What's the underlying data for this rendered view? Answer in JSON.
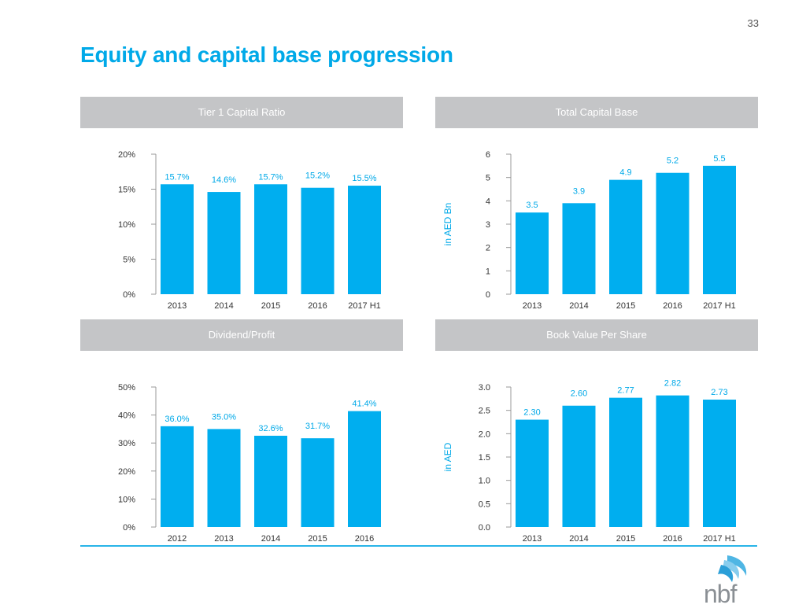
{
  "page_number": "33",
  "title": "Equity and capital base progression",
  "panels": {
    "tier1": {
      "header": "Tier 1 Capital Ratio"
    },
    "capital_base": {
      "header": "Total Capital Base"
    },
    "dividend": {
      "header": "Dividend/Profit"
    },
    "bvps": {
      "header": "Book Value Per Share"
    }
  },
  "logo_text": "nbf",
  "colors": {
    "bar": "#00aeef",
    "accent": "#00a9e8",
    "header_bg": "#c4c5c7",
    "axis": "#9a9a9a"
  },
  "chart_data": [
    {
      "id": "tier1",
      "type": "bar",
      "title": "Tier 1 Capital Ratio",
      "categories": [
        "2013",
        "2014",
        "2015",
        "2016",
        "2017 H1"
      ],
      "values": [
        15.7,
        14.6,
        15.7,
        15.2,
        15.5
      ],
      "data_labels": [
        "15.7%",
        "14.6%",
        "15.7%",
        "15.2%",
        "15.5%"
      ],
      "ylim": [
        0,
        20
      ],
      "yticks": [
        0,
        5,
        10,
        15,
        20
      ],
      "ytick_labels": [
        "0%",
        "5%",
        "10%",
        "15%",
        "20%"
      ],
      "ylabel": ""
    },
    {
      "id": "capital_base",
      "type": "bar",
      "title": "Total Capital Base",
      "categories": [
        "2013",
        "2014",
        "2015",
        "2016",
        "2017 H1"
      ],
      "values": [
        3.5,
        3.9,
        4.9,
        5.2,
        5.5
      ],
      "data_labels": [
        "3.5",
        "3.9",
        "4.9",
        "5.2",
        "5.5"
      ],
      "ylim": [
        0,
        6
      ],
      "yticks": [
        0,
        1,
        2,
        3,
        4,
        5,
        6
      ],
      "ytick_labels": [
        "0",
        "1",
        "2",
        "3",
        "4",
        "5",
        "6"
      ],
      "ylabel": "in AED Bn"
    },
    {
      "id": "dividend",
      "type": "bar",
      "title": "Dividend/Profit",
      "categories": [
        "2012",
        "2013",
        "2014",
        "2015",
        "2016"
      ],
      "values": [
        36.0,
        35.0,
        32.6,
        31.7,
        41.4
      ],
      "data_labels": [
        "36.0%",
        "35.0%",
        "32.6%",
        "31.7%",
        "41.4%"
      ],
      "ylim": [
        0,
        50
      ],
      "yticks": [
        0,
        10,
        20,
        30,
        40,
        50
      ],
      "ytick_labels": [
        "0%",
        "10%",
        "20%",
        "30%",
        "40%",
        "50%"
      ],
      "ylabel": ""
    },
    {
      "id": "bvps",
      "type": "bar",
      "title": "Book Value Per Share",
      "categories": [
        "2013",
        "2014",
        "2015",
        "2016",
        "2017 H1"
      ],
      "values": [
        2.3,
        2.6,
        2.77,
        2.82,
        2.73
      ],
      "data_labels": [
        "2.30",
        "2.60",
        "2.77",
        "2.82",
        "2.73"
      ],
      "ylim": [
        0,
        3.0
      ],
      "yticks": [
        0,
        0.5,
        1.0,
        1.5,
        2.0,
        2.5,
        3.0
      ],
      "ytick_labels": [
        "0.0",
        "0.5",
        "1.0",
        "1.5",
        "2.0",
        "2.5",
        "3.0"
      ],
      "ylabel": "in AED"
    }
  ]
}
